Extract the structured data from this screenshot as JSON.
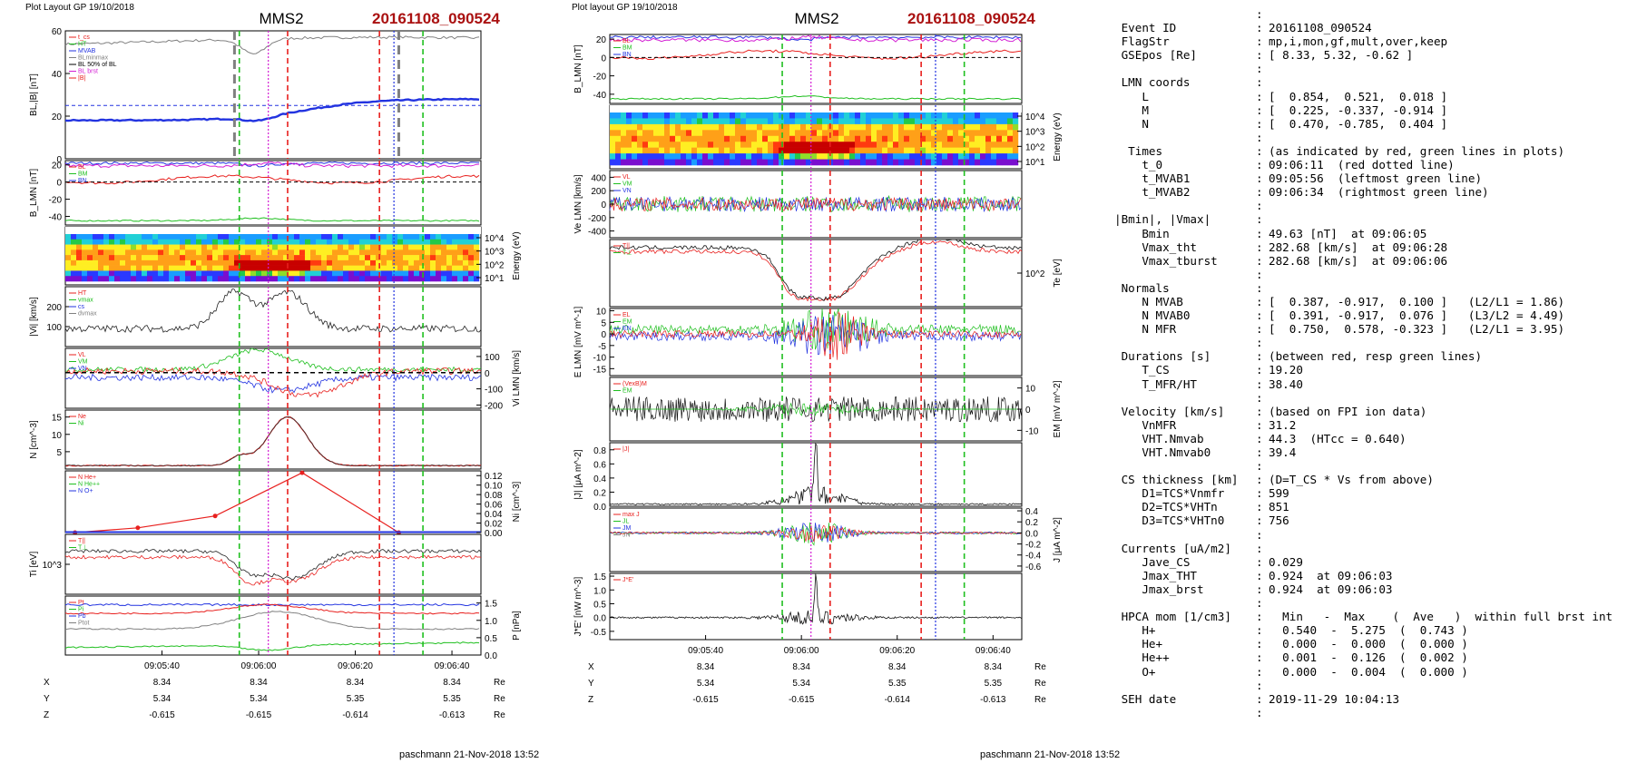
{
  "page": {
    "left_page": {
      "header": "Plot Layout GP 19/10/2018",
      "spacecraft": "MMS2",
      "event": "20161108_090524",
      "footer": "paschmann 21-Nov-2018 13:52"
    },
    "right_page": {
      "header": "Plot layout GP 19/10/2018",
      "spacecraft": "MMS2",
      "event": "20161108_090524",
      "footer": "paschmann 21-Nov-2018 13:52"
    },
    "time_axis": {
      "ticks": [
        "09:05:40",
        "09:06:00",
        "09:06:20",
        "09:06:40"
      ],
      "row_labels": [
        "X",
        "Y",
        "Z"
      ],
      "unit": "Re",
      "X": [
        "8.34",
        "8.34",
        "8.34",
        "8.34"
      ],
      "Y": [
        "5.34",
        "5.34",
        "5.35",
        "5.35"
      ],
      "Z": [
        "-0.615",
        "-0.615",
        "-0.614",
        "-0.613"
      ]
    },
    "colors": {
      "red": "#e8201e",
      "green": "#1fbf1f",
      "blue": "#2233e0",
      "magenta": "#d41fd4",
      "black": "#000000",
      "gray": "#808080",
      "title_red": "#aa1111"
    }
  },
  "chart_data": [
    {
      "type": "line",
      "page": "left",
      "ylabel": "BL,|B| [nT]",
      "ylim": [
        0,
        60
      ],
      "yticks": [
        "0",
        "20",
        "40",
        "60"
      ],
      "legend": [
        "t_cs",
        "HT",
        "MVAB",
        "BLminmax",
        "BL 50% of BL",
        "BL brst",
        "|B|"
      ]
    },
    {
      "type": "line",
      "page": "left",
      "ylabel": "B_LMN [nT]",
      "ylim": [
        -50,
        25
      ],
      "yticks": [
        "20",
        "0",
        "-20",
        "-40"
      ],
      "legend": [
        "BL",
        "BM",
        "BN"
      ]
    },
    {
      "type": "heatmap",
      "page": "left",
      "ylabel": "Energy (eV)",
      "yticks": [
        "10^4",
        "10^3",
        "10^2",
        "10^1"
      ]
    },
    {
      "type": "line",
      "page": "left",
      "ylabel": "|Vi| [km/s]",
      "ylim": [
        0,
        300
      ],
      "yticks": [
        "100",
        "200"
      ],
      "legend": [
        "HT",
        "vmax",
        "cs",
        "dvmax"
      ],
      "max_value": 282.68
    },
    {
      "type": "line",
      "page": "left",
      "ylabel": "Vi LMN [km/s]",
      "ylim": [
        -220,
        150
      ],
      "yticks": [
        "100",
        "0",
        "-100",
        "-200"
      ],
      "legend": [
        "VL",
        "VM",
        "VN"
      ]
    },
    {
      "type": "line",
      "page": "left",
      "ylabel": "N [cm^-3]",
      "ylim": [
        0,
        17
      ],
      "yticks": [
        "5",
        "10",
        "15"
      ],
      "legend": [
        "Ne",
        "Ni"
      ]
    },
    {
      "type": "line",
      "page": "left",
      "ylabel": "Ni [cm^-3]",
      "ylim": [
        0,
        0.13
      ],
      "yticks": [
        "0.12",
        "0.10",
        "0.08",
        "0.06",
        "0.04",
        "0.02",
        "0.00"
      ],
      "legend": [
        "N He+",
        "N He++",
        "N O+"
      ],
      "he_pp_peak": 0.126
    },
    {
      "type": "line",
      "page": "left",
      "ylabel": "Ti [eV]",
      "yticks": [
        "10^3"
      ],
      "legend": [
        "T||",
        "T⊥"
      ]
    },
    {
      "type": "line",
      "page": "left",
      "ylabel": "P [nPa]",
      "ylim": [
        0,
        1.7
      ],
      "yticks": [
        "1.5",
        "1.0",
        "0.5",
        "0.0"
      ],
      "legend": [
        "Pt",
        "Pi",
        "Pb",
        "Ptot"
      ]
    },
    {
      "type": "line",
      "page": "right",
      "ylabel": "B_LMN [nT]",
      "ylim": [
        -50,
        25
      ],
      "yticks": [
        "20",
        "0",
        "-20",
        "-40"
      ],
      "legend": [
        "BL",
        "BM",
        "BN"
      ]
    },
    {
      "type": "heatmap",
      "page": "right",
      "ylabel": "Energy (eV)",
      "yticks": [
        "10^4",
        "10^3",
        "10^2",
        "10^1"
      ]
    },
    {
      "type": "line",
      "page": "right",
      "ylabel": "Ve LMN [km/s]",
      "ylim": [
        -500,
        500
      ],
      "yticks": [
        "400",
        "200",
        "0",
        "-200",
        "-400"
      ],
      "legend": [
        "VL",
        "VM",
        "VN"
      ]
    },
    {
      "type": "line",
      "page": "right",
      "ylabel": "Te [eV]",
      "yticks": [
        "10^2"
      ],
      "legend": [
        "T||",
        "T⊥"
      ]
    },
    {
      "type": "line",
      "page": "right",
      "ylabel": "E LMN [mV m^-1]",
      "ylim": [
        -18,
        11
      ],
      "yticks": [
        "10",
        "5",
        "0",
        "-5",
        "-10",
        "-15"
      ],
      "legend": [
        "EL",
        "EM",
        "EN"
      ]
    },
    {
      "type": "line",
      "page": "right",
      "ylabel": "EM [mV m^-2]",
      "ylim": [
        -15,
        15
      ],
      "yticks": [
        "10",
        "0",
        "-10"
      ],
      "legend": [
        "(VexB)M",
        "EM"
      ]
    },
    {
      "type": "line",
      "page": "right",
      "ylabel": "|J| [μA m^-2]",
      "ylim": [
        0,
        0.9
      ],
      "yticks": [
        "0.8",
        "0.6",
        "0.4",
        "0.2",
        "0.0"
      ],
      "legend": [
        "|J|"
      ],
      "max_value": 0.924
    },
    {
      "type": "line",
      "page": "right",
      "ylabel": "J [μA m^-2]",
      "ylim": [
        -0.7,
        0.45
      ],
      "yticks": [
        "0.4",
        "0.2",
        "0.0",
        "-0.2",
        "-0.4",
        "-0.6"
      ],
      "legend": [
        "max J",
        "JL",
        "JM",
        "JN"
      ]
    },
    {
      "type": "line",
      "page": "right",
      "ylabel": "J*E' [nW m^-3]",
      "ylim": [
        -0.8,
        1.6
      ],
      "yticks": [
        "1.5",
        "1.0",
        "0.5",
        "0.0",
        "-0.5"
      ],
      "legend": [
        "J*E'"
      ]
    }
  ],
  "info_panel": {
    "lines": [
      {
        "k": "",
        "v": "",
        "colon": ":"
      },
      {
        "k": " Event ID",
        "v": "20161108_090524",
        "colon": ":"
      },
      {
        "k": " FlagStr",
        "v": "mp,i,mon,gf,mult,over,keep",
        "colon": ":"
      },
      {
        "k": " GSEpos [Re]",
        "v": "[ 8.33, 5.32, -0.62 ]",
        "colon": ":"
      },
      {
        "k": "",
        "v": "",
        "colon": ":"
      },
      {
        "k": " LMN coords",
        "v": "",
        "colon": ":"
      },
      {
        "k": "    L",
        "v": "[  0.854,  0.521,  0.018 ]",
        "colon": ":"
      },
      {
        "k": "    M",
        "v": "[  0.225, -0.337, -0.914 ]",
        "colon": ":"
      },
      {
        "k": "    N",
        "v": "[  0.470, -0.785,  0.404 ]",
        "colon": ":"
      },
      {
        "k": "",
        "v": "",
        "colon": ":"
      },
      {
        "k": "  Times",
        "v": "(as indicated by red, green lines in plots)",
        "colon": ":"
      },
      {
        "k": "    t_0",
        "v": "09:06:11  (red dotted line)",
        "colon": ":"
      },
      {
        "k": "    t_MVAB1",
        "v": "09:05:56  (leftmost green line)",
        "colon": ":"
      },
      {
        "k": "    t_MVAB2",
        "v": "09:06:34  (rightmost green line)",
        "colon": ":"
      },
      {
        "k": "",
        "v": "",
        "colon": ":"
      },
      {
        "k": "|Bmin|, |Vmax|",
        "v": "",
        "colon": ":"
      },
      {
        "k": "    Bmin",
        "v": "49.63 [nT]  at 09:06:05",
        "colon": ":"
      },
      {
        "k": "    Vmax_tht",
        "v": "282.68 [km/s]  at 09:06:28",
        "colon": ":"
      },
      {
        "k": "    Vmax_tburst",
        "v": "282.68 [km/s]  at 09:06:06",
        "colon": ":"
      },
      {
        "k": "",
        "v": "",
        "colon": ":"
      },
      {
        "k": " Normals",
        "v": "",
        "colon": ":"
      },
      {
        "k": "    N MVAB",
        "v": "[  0.387, -0.917,  0.100 ]   (L2/L1 = 1.86)",
        "colon": ":"
      },
      {
        "k": "    N MVAB0",
        "v": "[  0.391, -0.917,  0.076 ]   (L3/L2 = 4.49)",
        "colon": ":"
      },
      {
        "k": "    N MFR",
        "v": "[  0.750,  0.578, -0.323 ]   (L2/L1 = 3.95)",
        "colon": ":"
      },
      {
        "k": "",
        "v": "",
        "colon": ":"
      },
      {
        "k": " Durations [s]",
        "v": "(between red, resp green lines)",
        "colon": ":"
      },
      {
        "k": "    T_CS",
        "v": "19.20",
        "colon": ":"
      },
      {
        "k": "    T_MFR/HT",
        "v": "38.40",
        "colon": ":"
      },
      {
        "k": "",
        "v": "",
        "colon": ":"
      },
      {
        "k": " Velocity [km/s]",
        "v": "(based on FPI ion data)",
        "colon": ":"
      },
      {
        "k": "    VnMFR",
        "v": "31.2",
        "colon": ":"
      },
      {
        "k": "    VHT.Nmvab",
        "v": "44.3  (HTcc = 0.640)",
        "colon": ":"
      },
      {
        "k": "    VHT.Nmvab0",
        "v": "39.4",
        "colon": ":"
      },
      {
        "k": "",
        "v": "",
        "colon": ":"
      },
      {
        "k": " CS thickness [km]",
        "v": "(D=T_CS * Vs from above)",
        "colon": ":"
      },
      {
        "k": "    D1=TCS*Vnmfr",
        "v": "599",
        "colon": ":"
      },
      {
        "k": "    D2=TCS*VHTn",
        "v": "851",
        "colon": ":"
      },
      {
        "k": "    D3=TCS*VHTn0",
        "v": "756",
        "colon": ":"
      },
      {
        "k": "",
        "v": "",
        "colon": ":"
      },
      {
        "k": " Currents [uA/m2]",
        "v": "",
        "colon": ":"
      },
      {
        "k": "    Jave_CS",
        "v": "0.029",
        "colon": ":"
      },
      {
        "k": "    Jmax_THT",
        "v": "0.924  at 09:06:03",
        "colon": ":"
      },
      {
        "k": "    Jmax_brst",
        "v": "0.924  at 09:06:03",
        "colon": ":"
      },
      {
        "k": "",
        "v": "",
        "colon": ":"
      },
      {
        "k": " HPCA mom [1/cm3]",
        "v": "  Min   -  Max    (  Ave   )  within full brst int",
        "colon": ":"
      },
      {
        "k": "    H+",
        "v": "  0.540  -  5.275  (  0.743 )",
        "colon": ":"
      },
      {
        "k": "    He+",
        "v": "  0.000  -  0.000  (  0.000 )",
        "colon": ":"
      },
      {
        "k": "    He++",
        "v": "  0.001  -  0.126  (  0.002 )",
        "colon": ":"
      },
      {
        "k": "    O+",
        "v": "  0.000  -  0.004  (  0.000 )",
        "colon": ":"
      },
      {
        "k": "",
        "v": "",
        "colon": ":"
      },
      {
        "k": " SEH date",
        "v": "2019-11-29 10:04:13",
        "colon": ":"
      },
      {
        "k": "",
        "v": "",
        "colon": ":"
      }
    ]
  }
}
